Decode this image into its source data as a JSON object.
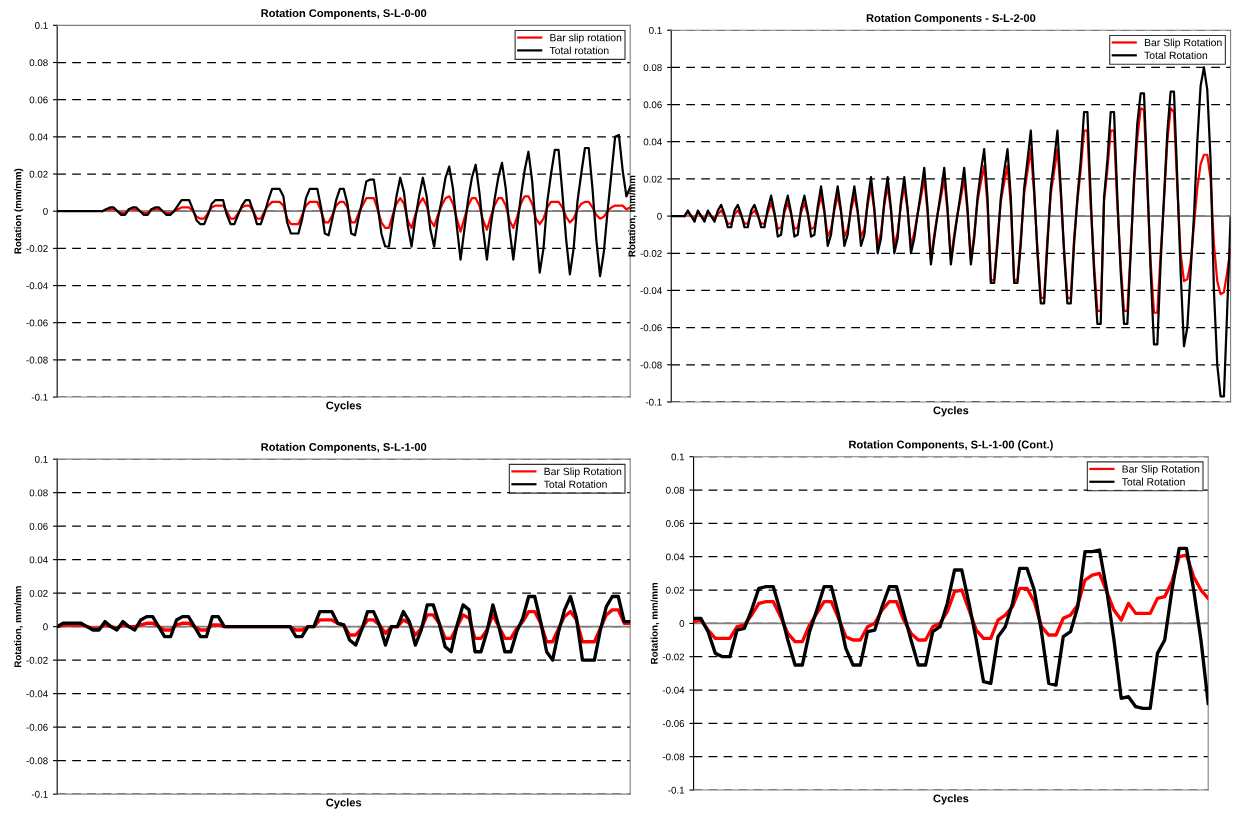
{
  "chart_data": [
    {
      "type": "line",
      "title": "Rotation Components, S-L-0-00",
      "xlabel": "Cycles",
      "ylabel": "Rotation (mm/mm)",
      "categories": [
        null,
        null,
        null,
        null,
        null,
        null,
        null,
        null,
        null,
        null,
        null,
        null,
        null,
        null,
        null,
        null,
        null,
        null,
        null,
        null,
        null,
        null,
        null,
        null,
        null,
        null,
        null,
        null,
        null,
        null,
        null,
        null,
        null,
        null,
        null,
        null,
        null,
        null,
        null,
        null,
        null,
        null,
        null,
        null,
        null,
        null,
        null,
        null,
        null,
        null,
        null,
        null,
        null,
        null,
        null,
        null,
        null,
        null,
        null,
        null,
        null,
        null,
        null,
        null,
        null,
        null,
        null,
        null,
        null,
        null,
        null,
        null,
        null,
        null,
        null,
        null,
        null,
        null,
        null,
        null,
        null,
        null,
        null,
        null,
        null,
        null,
        null,
        null,
        null,
        null,
        null,
        null,
        null,
        null,
        null,
        null,
        null,
        null,
        null,
        null,
        null,
        null,
        null,
        null,
        null,
        null,
        null,
        null,
        null,
        null,
        null,
        null,
        null,
        null,
        null,
        null,
        null,
        null,
        null,
        null,
        null,
        null,
        null,
        null,
        null,
        null,
        null,
        null,
        null,
        null,
        null,
        null,
        null,
        null,
        null,
        null,
        null,
        null,
        null,
        null,
        null,
        null,
        null,
        null,
        null,
        null,
        null,
        null,
        null,
        null,
        null,
        null,
        null
      ],
      "series": [
        {
          "name": "Bar slip rotation",
          "color": "#ff0000",
          "values": [
            null,
            null,
            null,
            null,
            null,
            null,
            null,
            null,
            null,
            null,
            null,
            null,
            0,
            0.001,
            0.001,
            0.001,
            0,
            -0.001,
            -0.001,
            0.001,
            0.001,
            0.001,
            0,
            -0.001,
            -0.001,
            0.001,
            0.001,
            0.001,
            0,
            -0.001,
            -0.001,
            0,
            0.001,
            0.002,
            0.002,
            0.002,
            0,
            -0.003,
            -0.004,
            -0.004,
            -0.001,
            0.002,
            0.003,
            0.003,
            0.003,
            0,
            -0.004,
            -0.004,
            -0.001,
            0.002,
            0.003,
            0.003,
            0,
            -0.004,
            -0.004,
            0,
            0.003,
            0.005,
            0.005,
            0.005,
            0.003,
            -0.004,
            -0.007,
            -0.007,
            -0.007,
            -0.002,
            0.003,
            0.005,
            0.005,
            0.005,
            0,
            -0.006,
            -0.006,
            -0.002,
            0.003,
            0.005,
            0.005,
            0.002,
            -0.006,
            -0.006,
            -0.001,
            0.003,
            0.007,
            0.007,
            0.007,
            0.001,
            -0.006,
            -0.009,
            -0.009,
            -0.002,
            0.004,
            0.007,
            0.004,
            -0.005,
            -0.009,
            -0.002,
            0.004,
            0.007,
            0.003,
            -0.005,
            -0.008,
            -0.002,
            0.003,
            0.007,
            0.008,
            0.004,
            -0.004,
            -0.011,
            -0.004,
            0.003,
            0.007,
            0.007,
            0.003,
            -0.005,
            -0.01,
            -0.003,
            0.003,
            0.007,
            0.007,
            0.003,
            -0.005,
            -0.009,
            -0.003,
            0.004,
            0.008,
            0.008,
            0.004,
            -0.004,
            -0.007,
            -0.004,
            0.002,
            0.005,
            0.005,
            0.005,
            0.002,
            -0.003,
            -0.006,
            -0.004,
            0.001,
            0.004,
            0.005,
            0.005,
            0.002,
            -0.002,
            -0.004,
            -0.003,
            0,
            0.002,
            0.003,
            0.003,
            0.003,
            0.001,
            0.002
          ]
        },
        {
          "name": "Total rotation",
          "color": "#000000",
          "values": [
            0,
            0,
            0,
            0,
            0,
            0,
            0,
            0,
            0,
            0,
            0,
            0,
            0,
            0.001,
            0.002,
            0.002,
            0,
            -0.002,
            -0.002,
            0.001,
            0.002,
            0.002,
            0,
            -0.002,
            -0.002,
            0.001,
            0.002,
            0.002,
            0,
            -0.002,
            -0.002,
            0,
            0.003,
            0.006,
            0.006,
            0.006,
            0.001,
            -0.005,
            -0.007,
            -0.007,
            -0.002,
            0.004,
            0.006,
            0.006,
            0.006,
            -0.002,
            -0.007,
            -0.007,
            -0.002,
            0.003,
            0.006,
            0.006,
            0,
            -0.007,
            -0.007,
            -0.001,
            0.006,
            0.012,
            0.012,
            0.012,
            0.008,
            -0.006,
            -0.012,
            -0.012,
            -0.012,
            -0.004,
            0.007,
            0.012,
            0.012,
            0.012,
            0.002,
            -0.012,
            -0.013,
            -0.004,
            0.006,
            0.012,
            0.012,
            0.004,
            -0.012,
            -0.013,
            -0.003,
            0.006,
            0.016,
            0.017,
            0.017,
            0.003,
            -0.012,
            -0.019,
            -0.019,
            -0.005,
            0.008,
            0.018,
            0.01,
            -0.008,
            -0.019,
            -0.004,
            0.008,
            0.018,
            0.008,
            -0.01,
            -0.019,
            -0.004,
            0.006,
            0.018,
            0.024,
            0.012,
            -0.008,
            -0.026,
            -0.01,
            0.006,
            0.018,
            0.025,
            0.01,
            -0.01,
            -0.026,
            -0.008,
            0.006,
            0.018,
            0.026,
            0.012,
            -0.01,
            -0.026,
            -0.008,
            0.008,
            0.022,
            0.032,
            0.016,
            -0.01,
            -0.033,
            -0.02,
            0.005,
            0.02,
            0.033,
            0.033,
            0.01,
            -0.015,
            -0.034,
            -0.02,
            0.005,
            0.02,
            0.034,
            0.034,
            0.012,
            -0.015,
            -0.035,
            -0.022,
            0,
            0.02,
            0.04,
            0.041,
            0.022,
            0.008,
            0.013
          ]
        }
      ],
      "ylim": [
        -0.1,
        0.1
      ],
      "yticks": [
        -0.1,
        -0.08,
        -0.06,
        -0.04,
        -0.02,
        0,
        0.02,
        0.04,
        0.06,
        0.08,
        0.1
      ],
      "ref_lines": [
        {
          "axis": "y",
          "value": 0,
          "color": "#808080"
        }
      ],
      "grid": "y",
      "legend": "top right",
      "tick_labels": "y",
      "marker": "none",
      "line_style": "solid"
    },
    {
      "type": "line",
      "title": "Rotation Components - S-L-2-00",
      "xlabel": "Cycles",
      "ylabel": "Rotation, mm/mm",
      "categories": [
        null,
        null,
        null,
        null,
        null,
        null,
        null,
        null,
        null,
        null,
        null,
        null,
        null,
        null,
        null,
        null,
        null,
        null,
        null,
        null,
        null,
        null,
        null,
        null,
        null,
        null,
        null,
        null,
        null,
        null,
        null,
        null,
        null,
        null,
        null,
        null,
        null,
        null,
        null,
        null,
        null,
        null,
        null,
        null,
        null,
        null,
        null,
        null,
        null,
        null,
        null,
        null,
        null,
        null,
        null,
        null,
        null,
        null,
        null,
        null,
        null,
        null,
        null,
        null,
        null,
        null,
        null,
        null,
        null,
        null,
        null,
        null,
        null,
        null,
        null,
        null,
        null,
        null,
        null,
        null,
        null,
        null,
        null,
        null,
        null,
        null,
        null,
        null,
        null,
        null,
        null,
        null,
        null,
        null,
        null,
        null,
        null,
        null,
        null,
        null,
        null,
        null,
        null,
        null,
        null,
        null,
        null,
        null,
        null,
        null,
        null,
        null,
        null,
        null,
        null,
        null,
        null,
        null,
        null,
        null,
        null,
        null,
        null,
        null,
        null,
        null,
        null,
        null,
        null,
        null,
        null,
        null,
        null,
        null,
        null,
        null,
        null,
        null,
        null,
        null,
        null,
        null,
        null,
        null,
        null,
        null,
        null,
        null,
        null,
        null,
        null,
        null,
        null,
        null,
        null,
        null,
        null,
        null,
        null,
        null,
        null,
        null,
        null,
        null,
        null,
        null,
        null,
        null,
        null
      ],
      "series": [
        {
          "name": "Bar Slip Rotation",
          "color": "#ff0000",
          "values": [
            null,
            null,
            null,
            null,
            0,
            0.002,
            0,
            -0.001,
            0.002,
            0,
            -0.001,
            0.002,
            0,
            -0.001,
            0.001,
            0.003,
            0,
            -0.004,
            -0.004,
            0.001,
            0.003,
            0,
            -0.004,
            -0.004,
            0.001,
            0.003,
            0,
            -0.004,
            -0.004,
            0.002,
            0.007,
            0.001,
            -0.007,
            -0.006,
            0.002,
            0.007,
            0.001,
            -0.007,
            -0.006,
            0.002,
            0.007,
            0.001,
            -0.007,
            -0.006,
            0.003,
            0.011,
            0.002,
            -0.011,
            -0.007,
            0.003,
            0.011,
            0.002,
            -0.011,
            -0.007,
            0.003,
            0.011,
            0.002,
            -0.011,
            -0.007,
            0.006,
            0.016,
            0.003,
            -0.016,
            -0.009,
            0.006,
            0.016,
            0.003,
            -0.016,
            -0.009,
            0.006,
            0.016,
            0.003,
            -0.016,
            -0.009,
            0.001,
            0.01,
            0.02,
            0.002,
            -0.023,
            -0.01,
            0.001,
            0.01,
            0.02,
            0.002,
            -0.023,
            -0.01,
            0.001,
            0.01,
            0.02,
            0.002,
            -0.023,
            -0.01,
            0.008,
            0.018,
            0.027,
            0.006,
            -0.035,
            -0.034,
            -0.012,
            0.008,
            0.018,
            0.027,
            0.006,
            -0.035,
            -0.034,
            -0.012,
            0.012,
            0.024,
            0.036,
            0.012,
            -0.018,
            -0.044,
            -0.044,
            -0.012,
            0.012,
            0.024,
            0.036,
            0.012,
            -0.018,
            -0.044,
            -0.044,
            -0.012,
            0.008,
            0.025,
            0.046,
            0.046,
            0.005,
            -0.026,
            -0.051,
            -0.051,
            0.008,
            0.025,
            0.046,
            0.046,
            0.005,
            -0.026,
            -0.051,
            -0.051,
            -0.018,
            0.017,
            0.042,
            0.058,
            0.057,
            0.015,
            -0.025,
            -0.052,
            -0.052,
            -0.02,
            0.008,
            0.04,
            0.058,
            0.056,
            0.015,
            -0.02,
            -0.035,
            -0.034,
            -0.025,
            -0.005,
            0.015,
            0.028,
            0.033,
            0.033,
            0.02,
            -0.015,
            -0.035,
            -0.042,
            -0.041,
            -0.03,
            -0.018
          ]
        },
        {
          "name": "Total Rotation",
          "color": "#000000",
          "values": [
            0,
            0,
            0,
            0,
            0,
            0.003,
            0,
            -0.003,
            0.003,
            0,
            -0.003,
            0.003,
            0,
            -0.003,
            0.003,
            0.006,
            0.001,
            -0.006,
            -0.006,
            0.003,
            0.006,
            0.001,
            -0.006,
            -0.006,
            0.003,
            0.006,
            0.001,
            -0.006,
            -0.006,
            0.004,
            0.011,
            0.002,
            -0.011,
            -0.01,
            0.004,
            0.011,
            0.002,
            -0.011,
            -0.01,
            0.004,
            0.011,
            0.002,
            -0.011,
            -0.01,
            0.005,
            0.016,
            0.003,
            -0.016,
            -0.01,
            0.005,
            0.016,
            0.003,
            -0.016,
            -0.01,
            0.005,
            0.016,
            0.003,
            -0.016,
            -0.01,
            0.008,
            0.021,
            0.004,
            -0.02,
            -0.012,
            0.008,
            0.021,
            0.004,
            -0.02,
            -0.012,
            0.008,
            0.021,
            0.004,
            -0.02,
            -0.012,
            0.001,
            0.013,
            0.026,
            0.004,
            -0.026,
            -0.012,
            0.001,
            0.013,
            0.026,
            0.004,
            -0.026,
            -0.012,
            0.001,
            0.013,
            0.026,
            0.004,
            -0.026,
            -0.012,
            0.01,
            0.024,
            0.036,
            0.01,
            -0.036,
            -0.036,
            -0.015,
            0.01,
            0.024,
            0.036,
            0.01,
            -0.036,
            -0.036,
            -0.015,
            0.015,
            0.03,
            0.046,
            0.015,
            -0.02,
            -0.047,
            -0.047,
            -0.015,
            0.015,
            0.03,
            0.046,
            0.015,
            -0.02,
            -0.047,
            -0.047,
            -0.015,
            0.01,
            0.03,
            0.056,
            0.056,
            0.01,
            -0.03,
            -0.058,
            -0.058,
            0.01,
            0.03,
            0.056,
            0.056,
            0.01,
            -0.03,
            -0.058,
            -0.058,
            -0.02,
            0.02,
            0.05,
            0.066,
            0.066,
            0.02,
            -0.03,
            -0.069,
            -0.069,
            -0.025,
            0.01,
            0.045,
            0.067,
            0.067,
            0.02,
            -0.03,
            -0.07,
            -0.06,
            -0.03,
            0,
            0.04,
            0.07,
            0.08,
            0.068,
            0.03,
            -0.04,
            -0.08,
            -0.097,
            -0.097,
            -0.05,
            -0.001
          ]
        }
      ],
      "ylim": [
        -0.1,
        0.1
      ],
      "yticks": [
        -0.1,
        -0.08,
        -0.06,
        -0.04,
        -0.02,
        0,
        0.02,
        0.04,
        0.06,
        0.08,
        0.1
      ],
      "ref_lines": [
        {
          "axis": "y",
          "value": 0,
          "color": "#808080"
        }
      ],
      "grid": "y",
      "legend": "top right",
      "tick_labels": "y",
      "marker": "none",
      "line_style": "solid"
    },
    {
      "type": "line",
      "title": "Rotation Components, S-L-1-00",
      "xlabel": "Cycles",
      "ylabel": "Rotation, mm/mm",
      "categories": [
        null,
        null,
        null,
        null,
        null,
        null,
        null,
        null,
        null,
        null,
        null,
        null,
        null,
        null,
        null,
        null,
        null,
        null,
        null,
        null,
        null,
        null,
        null,
        null,
        null,
        null,
        null,
        null,
        null,
        null,
        null,
        null,
        null,
        null,
        null,
        null,
        null,
        null,
        null,
        null,
        null,
        null,
        null,
        null,
        null,
        null,
        null,
        null,
        null,
        null,
        null,
        null,
        null,
        null,
        null,
        null,
        null,
        null,
        null,
        null,
        null,
        null,
        null,
        null,
        null,
        null,
        null,
        null,
        null,
        null,
        null,
        null,
        null,
        null,
        null,
        null,
        null,
        null,
        null,
        null,
        null,
        null,
        null,
        null,
        null,
        null,
        null,
        null,
        null,
        null,
        null,
        null,
        null,
        null,
        null,
        null,
        null
      ],
      "series": [
        {
          "name": "Bar Slip Rotation",
          "color": "#ff0000",
          "values": [
            0,
            0.001,
            0.001,
            0.001,
            0.001,
            0,
            -0.001,
            -0.001,
            0.001,
            0,
            -0.001,
            0.001,
            0,
            0,
            0.001,
            0.002,
            0.002,
            0,
            -0.002,
            -0.002,
            0.001,
            0.002,
            0.002,
            0,
            -0.002,
            -0.002,
            0.001,
            0.001,
            0,
            0,
            0,
            0,
            0,
            0,
            0,
            0,
            0,
            0,
            0,
            0,
            -0.002,
            -0.002,
            0,
            0,
            0.004,
            0.004,
            0.004,
            0.002,
            0.001,
            -0.005,
            -0.005,
            -0.001,
            0.004,
            0.004,
            0.001,
            -0.004,
            0,
            0,
            0.004,
            0.002,
            -0.005,
            -0.001,
            0.007,
            0.007,
            0.002,
            -0.007,
            -0.007,
            0,
            0.007,
            0.005,
            -0.007,
            -0.007,
            -0.002,
            0.007,
            0,
            -0.007,
            -0.007,
            -0.001,
            0.003,
            0.009,
            0.009,
            0.002,
            -0.009,
            -0.009,
            -0.001,
            0.006,
            0.009,
            0.004,
            -0.009,
            -0.009,
            -0.009,
            -0.001,
            0.007,
            0.01,
            0.01,
            0.002,
            0.002
          ]
        },
        {
          "name": "Total Rotation",
          "color": "#000000",
          "values": [
            0,
            0.002,
            0.002,
            0.002,
            0.002,
            0,
            -0.002,
            -0.002,
            0.003,
            0,
            -0.002,
            0.003,
            0,
            -0.002,
            0.004,
            0.006,
            0.006,
            0,
            -0.006,
            -0.006,
            0.004,
            0.006,
            0.006,
            0,
            -0.006,
            -0.006,
            0.006,
            0.006,
            0,
            0,
            0,
            0,
            0,
            0,
            0,
            0,
            0,
            0,
            0,
            0,
            -0.006,
            -0.006,
            0,
            0,
            0.009,
            0.009,
            0.009,
            0.002,
            0.001,
            -0.008,
            -0.011,
            -0.002,
            0.009,
            0.009,
            0.001,
            -0.011,
            0,
            0,
            0.009,
            0.003,
            -0.011,
            -0.002,
            0.013,
            0.013,
            0.002,
            -0.012,
            -0.015,
            0.001,
            0.013,
            0.01,
            -0.015,
            -0.015,
            -0.003,
            0.013,
            0,
            -0.015,
            -0.015,
            -0.003,
            0.005,
            0.018,
            0.018,
            0.003,
            -0.015,
            -0.02,
            -0.003,
            0.01,
            0.018,
            0.005,
            -0.02,
            -0.02,
            -0.02,
            -0.002,
            0.012,
            0.018,
            0.018,
            0.003,
            0.003
          ]
        }
      ],
      "ylim": [
        -0.1,
        0.1
      ],
      "yticks": [
        -0.1,
        -0.08,
        -0.06,
        -0.04,
        -0.02,
        0,
        0.02,
        0.04,
        0.06,
        0.08,
        0.1
      ],
      "ref_lines": [
        {
          "axis": "y",
          "value": 0,
          "color": "#808080"
        }
      ],
      "grid": "y",
      "legend": "top right",
      "tick_labels": "y",
      "marker": "none",
      "line_style": "solid"
    },
    {
      "type": "line",
      "title": "Rotation Components, S-L-1-00 (Cont.)",
      "xlabel": "Cycles",
      "ylabel": "Rotation, mm/mm",
      "categories": [
        null,
        null,
        null,
        null,
        null,
        null,
        null,
        null,
        null,
        null,
        null,
        null,
        null,
        null,
        null,
        null,
        null,
        null,
        null,
        null,
        null,
        null,
        null,
        null,
        null,
        null,
        null,
        null,
        null,
        null,
        null,
        null,
        null,
        null,
        null,
        null,
        null,
        null,
        null,
        null,
        null,
        null,
        null,
        null,
        null,
        null,
        null,
        null,
        null,
        null,
        null,
        null,
        null,
        null,
        null,
        null,
        null,
        null,
        null,
        null,
        null,
        null,
        null,
        null,
        null,
        null,
        null,
        null,
        null,
        null,
        null,
        null
      ],
      "series": [
        {
          "name": "Bar Slip Rotation",
          "color": "#ff0000",
          "values": [
            0.001,
            0.002,
            -0.004,
            -0.009,
            -0.009,
            -0.009,
            -0.002,
            -0.001,
            0.005,
            0.012,
            0.013,
            0.013,
            0.004,
            -0.006,
            -0.011,
            -0.011,
            -0.001,
            0.006,
            0.013,
            0.013,
            0.003,
            -0.008,
            -0.01,
            -0.01,
            -0.002,
            0,
            0.008,
            0.013,
            0.013,
            0.002,
            -0.006,
            -0.01,
            -0.01,
            -0.002,
            0,
            0.007,
            0.019,
            0.02,
            0.008,
            -0.004,
            -0.009,
            -0.009,
            0.002,
            0.005,
            0.01,
            0.021,
            0.021,
            0.013,
            -0.002,
            -0.007,
            -0.007,
            0.003,
            0.005,
            0.011,
            0.026,
            0.029,
            0.03,
            0.019,
            0.008,
            0.002,
            0.012,
            0.006,
            0.006,
            0.006,
            0.015,
            0.016,
            0.025,
            0.04,
            0.041,
            0.028,
            0.02,
            0.015
          ]
        },
        {
          "name": "Total Rotation",
          "color": "#000000",
          "values": [
            0.003,
            0.003,
            -0.005,
            -0.018,
            -0.02,
            -0.02,
            -0.004,
            -0.003,
            0.008,
            0.021,
            0.022,
            0.022,
            0.007,
            -0.01,
            -0.025,
            -0.025,
            -0.005,
            0.008,
            0.022,
            0.022,
            0.005,
            -0.015,
            -0.025,
            -0.025,
            -0.005,
            -0.004,
            0.01,
            0.022,
            0.022,
            0.006,
            -0.01,
            -0.025,
            -0.025,
            -0.005,
            -0.002,
            0.012,
            0.032,
            0.032,
            0.012,
            -0.01,
            -0.035,
            -0.036,
            -0.008,
            -0.002,
            0.012,
            0.033,
            0.033,
            0.02,
            -0.005,
            -0.036,
            -0.037,
            -0.008,
            -0.005,
            0.01,
            0.043,
            0.043,
            0.044,
            0.02,
            -0.01,
            -0.045,
            -0.044,
            -0.05,
            -0.051,
            -0.051,
            -0.018,
            -0.01,
            0.02,
            0.045,
            0.045,
            0.02,
            -0.01,
            -0.048
          ]
        }
      ],
      "ylim": [
        -0.1,
        0.1
      ],
      "yticks": [
        -0.1,
        -0.08,
        -0.06,
        -0.04,
        -0.02,
        0,
        0.02,
        0.04,
        0.06,
        0.08,
        0.1
      ],
      "ref_lines": [
        {
          "axis": "y",
          "value": 0,
          "color": "#808080"
        }
      ],
      "grid": "y",
      "legend": "top right",
      "tick_labels": "y",
      "marker": "none",
      "line_style": "solid"
    }
  ]
}
